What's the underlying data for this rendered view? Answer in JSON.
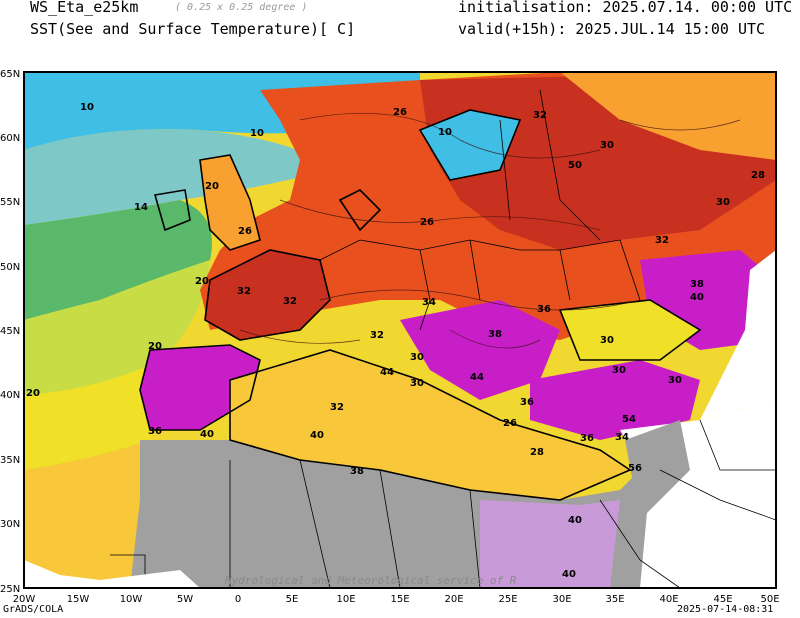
{
  "header": {
    "model": "WS_Eta_e25km",
    "resolution": "( 0.25 x 0.25 degree )",
    "variable": "SST(See and Surface Temperature)[ C]",
    "initialisation": "initialisation: 2025.07.14. 00:00 UTC",
    "valid": "valid(+15h): 2025.JUL.14 15:00 UTC"
  },
  "axes": {
    "x_labels": [
      "20W",
      "15W",
      "10W",
      "5W",
      "0",
      "5E",
      "10E",
      "15E",
      "20E",
      "25E",
      "30E",
      "35E",
      "40E",
      "45E",
      "50E"
    ],
    "y_labels": [
      "65N",
      "60N",
      "55N",
      "50N",
      "45N",
      "40N",
      "35N",
      "30N",
      "25N"
    ]
  },
  "contour_labels": [
    "10",
    "10",
    "14",
    "20",
    "20",
    "20",
    "26",
    "20",
    "10",
    "30",
    "50",
    "26",
    "32",
    "32",
    "30",
    "32",
    "26",
    "28",
    "32",
    "32",
    "30",
    "36",
    "34",
    "38",
    "40",
    "26",
    "28",
    "30",
    "32",
    "40",
    "36",
    "30",
    "36",
    "40",
    "54",
    "36",
    "40",
    "38",
    "34",
    "56",
    "38",
    "44",
    "44",
    "30",
    "30",
    "40"
  ],
  "watermark": "Hydrological and Meteorological service of R",
  "footer": {
    "left": "GrADS/COLA",
    "right": "2025-07-14-08:31"
  },
  "colors": {
    "cold_sea": "#3fbfe6",
    "sea_cool": "#7fc8c8",
    "sea_mid": "#5ab86a",
    "sea_warm": "#c8dc46",
    "sea_hot": "#f0e028",
    "sea_hotter": "#f8c83a",
    "land_warm": "#f8a030",
    "land_hot": "#e8501e",
    "land_very_hot": "#c83020",
    "land_extreme": "#c81ec8",
    "land_max": "#a050c8",
    "no_data": "#a0a0a0"
  }
}
